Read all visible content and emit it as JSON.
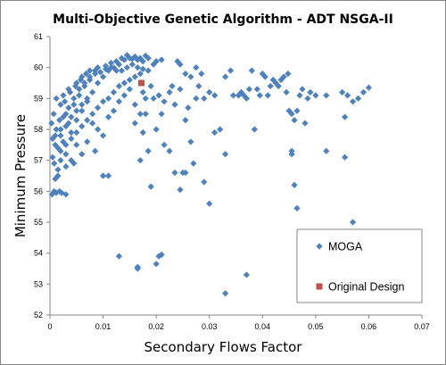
{
  "chart_data": {
    "type": "scatter",
    "title": "Multi-Objective Genetic Algorithm - ADT NSGA-II",
    "xlabel": "Secondary Flows Factor",
    "ylabel": "Minimum Pressure",
    "xlim": [
      0,
      0.07
    ],
    "ylim": [
      52,
      61
    ],
    "x_ticks": [
      "0",
      "0.01",
      "0.02",
      "0.03",
      "0.04",
      "0.05",
      "0.06",
      "0.07"
    ],
    "y_ticks": [
      "52",
      "53",
      "54",
      "55",
      "56",
      "57",
      "58",
      "59",
      "60",
      "61"
    ],
    "grid": false,
    "legend_position": "bottom-right",
    "series": [
      {
        "name": "MOGA",
        "marker": "diamond",
        "color": "#4f81bd",
        "points": [
          [
            0.0004,
            55.9
          ],
          [
            0.0008,
            56.0
          ],
          [
            0.0012,
            55.95
          ],
          [
            0.0018,
            56.0
          ],
          [
            0.0022,
            55.95
          ],
          [
            0.003,
            55.9
          ],
          [
            0.001,
            56.4
          ],
          [
            0.0015,
            56.7
          ],
          [
            0.0008,
            56.9
          ],
          [
            0.002,
            57.0
          ],
          [
            0.0005,
            57.1
          ],
          [
            0.003,
            57.2
          ],
          [
            0.0015,
            57.4
          ],
          [
            0.0025,
            57.6
          ],
          [
            0.001,
            57.8
          ],
          [
            0.004,
            57.9
          ],
          [
            0.002,
            58.0
          ],
          [
            0.0035,
            58.2
          ],
          [
            0.005,
            58.3
          ],
          [
            0.003,
            58.5
          ],
          [
            0.006,
            58.6
          ],
          [
            0.0045,
            58.8
          ],
          [
            0.007,
            58.9
          ],
          [
            0.0055,
            59.1
          ],
          [
            0.008,
            59.2
          ],
          [
            0.0065,
            59.4
          ],
          [
            0.009,
            59.5
          ],
          [
            0.0075,
            59.6
          ],
          [
            0.01,
            59.7
          ],
          [
            0.0085,
            59.8
          ],
          [
            0.011,
            59.9
          ],
          [
            0.0095,
            59.85
          ],
          [
            0.012,
            60.0
          ],
          [
            0.0105,
            60.05
          ],
          [
            0.013,
            60.1
          ],
          [
            0.0115,
            60.15
          ],
          [
            0.014,
            60.25
          ],
          [
            0.0125,
            60.2
          ],
          [
            0.015,
            60.3
          ],
          [
            0.0135,
            60.3
          ],
          [
            0.016,
            60.35
          ],
          [
            0.017,
            60.3
          ],
          [
            0.018,
            60.38
          ],
          [
            0.0145,
            60.4
          ],
          [
            0.0155,
            60.28
          ],
          [
            0.0165,
            60.25
          ],
          [
            0.0175,
            60.2
          ],
          [
            0.0185,
            60.3
          ],
          [
            0.002,
            57.3
          ],
          [
            0.003,
            57.5
          ],
          [
            0.004,
            57.7
          ],
          [
            0.005,
            57.9
          ],
          [
            0.006,
            58.1
          ],
          [
            0.007,
            58.3
          ],
          [
            0.008,
            58.5
          ],
          [
            0.009,
            58.7
          ],
          [
            0.01,
            58.9
          ],
          [
            0.011,
            59.0
          ],
          [
            0.012,
            59.2
          ],
          [
            0.013,
            59.4
          ],
          [
            0.014,
            59.5
          ],
          [
            0.015,
            59.6
          ],
          [
            0.016,
            59.7
          ],
          [
            0.017,
            59.8
          ],
          [
            0.0025,
            58.4
          ],
          [
            0.0035,
            58.7
          ],
          [
            0.0045,
            59.0
          ],
          [
            0.0055,
            59.3
          ],
          [
            0.0065,
            59.5
          ],
          [
            0.0075,
            59.7
          ],
          [
            0.0085,
            59.9
          ],
          [
            0.0012,
            58.0
          ],
          [
            0.0018,
            58.3
          ],
          [
            0.0028,
            58.9
          ],
          [
            0.0038,
            59.2
          ],
          [
            0.0048,
            59.4
          ],
          [
            0.0058,
            59.6
          ],
          [
            0.0068,
            59.8
          ],
          [
            0.001,
            57.5
          ],
          [
            0.002,
            57.8
          ],
          [
            0.003,
            58.1
          ],
          [
            0.004,
            58.4
          ],
          [
            0.005,
            58.6
          ],
          [
            0.006,
            58.8
          ],
          [
            0.007,
            59.0
          ],
          [
            0.008,
            58.2
          ],
          [
            0.009,
            58.0
          ],
          [
            0.01,
            57.8
          ],
          [
            0.011,
            58.4
          ],
          [
            0.012,
            58.6
          ],
          [
            0.013,
            58.9
          ],
          [
            0.014,
            59.1
          ],
          [
            0.015,
            59.3
          ],
          [
            0.016,
            58.8
          ],
          [
            0.017,
            58.5
          ],
          [
            0.018,
            59.0
          ],
          [
            0.005,
            57.5
          ],
          [
            0.006,
            57.2
          ],
          [
            0.0045,
            56.9
          ],
          [
            0.007,
            57.6
          ],
          [
            0.0085,
            57.3
          ],
          [
            0.01,
            56.5
          ],
          [
            0.004,
            57.0
          ],
          [
            0.003,
            56.8
          ],
          [
            0.0015,
            56.5
          ],
          [
            0.0005,
            57.7
          ],
          [
            0.0003,
            58.2
          ],
          [
            0.0007,
            58.5
          ],
          [
            0.002,
            58.8
          ],
          [
            0.0012,
            59.0
          ],
          [
            0.0025,
            59.1
          ],
          [
            0.0035,
            59.3
          ],
          [
            0.005,
            59.5
          ],
          [
            0.006,
            59.7
          ],
          [
            0.0075,
            59.9
          ],
          [
            0.009,
            60.0
          ],
          [
            0.0105,
            59.95
          ],
          [
            0.0115,
            60.0
          ],
          [
            0.0125,
            59.9
          ],
          [
            0.0135,
            59.9
          ],
          [
            0.0145,
            60.0
          ],
          [
            0.0155,
            60.1
          ],
          [
            0.0165,
            60.0
          ],
          [
            0.0175,
            59.95
          ],
          [
            0.0185,
            59.9
          ],
          [
            0.0195,
            60.1
          ],
          [
            0.016,
            58.2
          ],
          [
            0.0175,
            57.9
          ],
          [
            0.0185,
            57.3
          ],
          [
            0.017,
            57.0
          ],
          [
            0.02,
            58.0
          ],
          [
            0.021,
            58.5
          ],
          [
            0.0215,
            57.5
          ],
          [
            0.0225,
            57.3
          ],
          [
            0.0235,
            58.8
          ],
          [
            0.0245,
            59.3
          ],
          [
            0.0255,
            58.3
          ],
          [
            0.0265,
            57.6
          ],
          [
            0.0205,
            59.1
          ],
          [
            0.019,
            59.4
          ],
          [
            0.02,
            60.2
          ],
          [
            0.021,
            60.25
          ],
          [
            0.024,
            60.2
          ],
          [
            0.0245,
            60.1
          ],
          [
            0.0255,
            59.8
          ],
          [
            0.0265,
            59.7
          ],
          [
            0.0275,
            59.0
          ],
          [
            0.028,
            59.4
          ],
          [
            0.029,
            59.0
          ],
          [
            0.03,
            59.2
          ],
          [
            0.031,
            59.1
          ],
          [
            0.032,
            58.0
          ],
          [
            0.033,
            59.7
          ],
          [
            0.034,
            59.9
          ],
          [
            0.0345,
            59.1
          ],
          [
            0.0355,
            59.1
          ],
          [
            0.036,
            59.2
          ],
          [
            0.037,
            59.0
          ],
          [
            0.038,
            59.9
          ],
          [
            0.0385,
            58.0
          ],
          [
            0.039,
            59.3
          ],
          [
            0.04,
            59.8
          ],
          [
            0.0405,
            59.7
          ],
          [
            0.041,
            59.1
          ],
          [
            0.042,
            59.6
          ],
          [
            0.043,
            59.4
          ],
          [
            0.044,
            59.7
          ],
          [
            0.0445,
            59.2
          ],
          [
            0.045,
            58.6
          ],
          [
            0.0455,
            58.5
          ],
          [
            0.046,
            58.3
          ],
          [
            0.0465,
            58.6
          ],
          [
            0.047,
            59.1
          ],
          [
            0.0475,
            59.3
          ],
          [
            0.048,
            58.2
          ],
          [
            0.0485,
            59.0
          ],
          [
            0.049,
            59.2
          ],
          [
            0.05,
            59.1
          ],
          [
            0.052,
            59.1
          ],
          [
            0.055,
            59.2
          ],
          [
            0.056,
            59.1
          ],
          [
            0.057,
            58.9
          ],
          [
            0.058,
            59.0
          ],
          [
            0.059,
            59.2
          ],
          [
            0.06,
            59.35
          ],
          [
            0.0555,
            58.4
          ],
          [
            0.0555,
            57.1
          ],
          [
            0.052,
            57.3
          ],
          [
            0.0455,
            57.3
          ],
          [
            0.0455,
            57.2
          ],
          [
            0.046,
            56.2
          ],
          [
            0.0465,
            55.45
          ],
          [
            0.057,
            55.0
          ],
          [
            0.033,
            52.7
          ],
          [
            0.037,
            53.3
          ],
          [
            0.03,
            55.6
          ],
          [
            0.025,
            56.6
          ],
          [
            0.0245,
            56.05
          ],
          [
            0.0235,
            56.6
          ],
          [
            0.0255,
            56.6
          ],
          [
            0.019,
            56.15
          ],
          [
            0.011,
            56.5
          ],
          [
            0.0205,
            53.9
          ],
          [
            0.021,
            53.95
          ],
          [
            0.02,
            53.65
          ],
          [
            0.0165,
            53.55
          ],
          [
            0.013,
            53.9
          ],
          [
            0.0165,
            53.5
          ],
          [
            0.027,
            56.9
          ],
          [
            0.029,
            56.3
          ],
          [
            0.031,
            57.9
          ],
          [
            0.033,
            57.2
          ],
          [
            0.026,
            58.7
          ],
          [
            0.023,
            59.4
          ],
          [
            0.0275,
            60.0
          ],
          [
            0.0285,
            59.8
          ],
          [
            0.0365,
            59.1
          ],
          [
            0.0375,
            59.3
          ],
          [
            0.0395,
            59.1
          ],
          [
            0.0415,
            59.4
          ],
          [
            0.0425,
            59.5
          ],
          [
            0.0435,
            59.6
          ],
          [
            0.0448,
            59.8
          ],
          [
            0.018,
            58.5
          ],
          [
            0.0175,
            59.2
          ],
          [
            0.0225,
            59.2
          ],
          [
            0.0195,
            59.0
          ],
          [
            0.0215,
            58.9
          ]
        ]
      },
      {
        "name": "Original Design",
        "marker": "square",
        "color": "#c0504d",
        "points": [
          [
            0.0172,
            59.5
          ]
        ]
      }
    ]
  }
}
